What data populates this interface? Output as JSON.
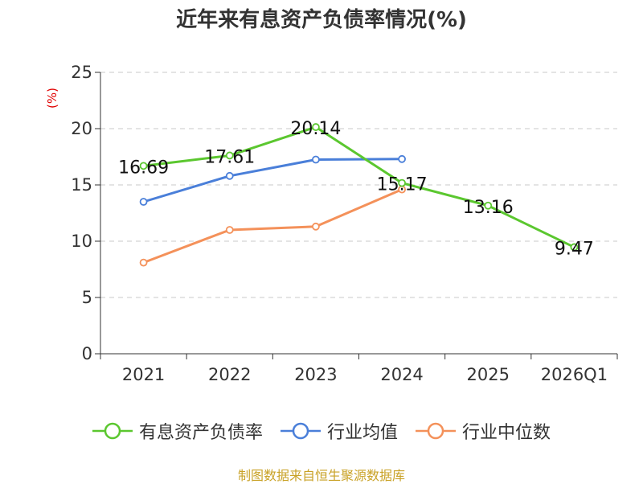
{
  "title": "近年来有息资产负债率情况(%)",
  "unit_label": "(%)",
  "footer": "制图数据来自恒生聚源数据库",
  "chart_data": {
    "type": "line",
    "categories": [
      "2021",
      "2022",
      "2023",
      "2024",
      "2025",
      "2026Q1"
    ],
    "ylim": [
      0,
      25
    ],
    "yticks": [
      0,
      5,
      10,
      15,
      20,
      25
    ],
    "grid": true,
    "legend_position": "bottom",
    "series": [
      {
        "name": "有息资产负债率",
        "color": "#5bc72f",
        "values": [
          16.69,
          17.61,
          20.14,
          15.17,
          13.16,
          9.47
        ],
        "labels": [
          "16.69",
          "17.61",
          "20.14",
          "15.17",
          "13.16",
          "9.47"
        ]
      },
      {
        "name": "行业均值",
        "color": "#4a7fd9",
        "values": [
          13.5,
          15.8,
          17.25,
          17.3,
          null,
          null
        ]
      },
      {
        "name": "行业中位数",
        "color": "#f4915a",
        "values": [
          8.1,
          11.0,
          11.3,
          14.6,
          null,
          null
        ]
      }
    ]
  }
}
